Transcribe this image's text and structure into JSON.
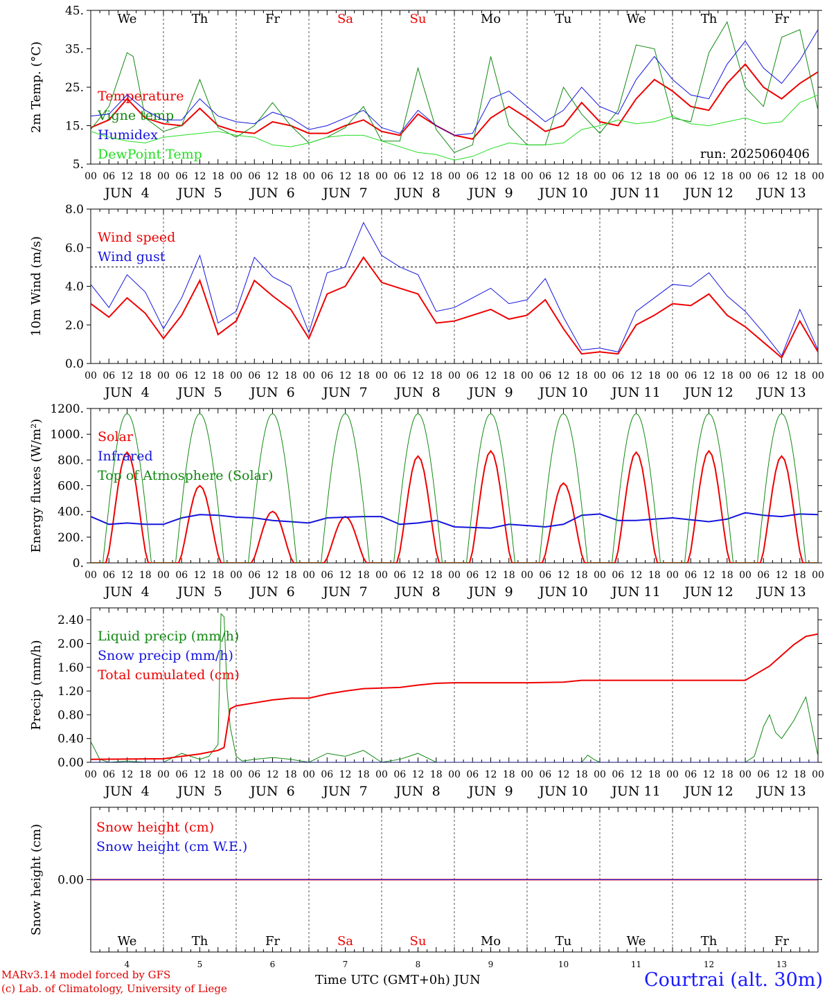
{
  "colors": {
    "red": "#ee0000",
    "green": "#118811",
    "blue": "#1414dd",
    "lightgreen": "#22dd22",
    "axis": "#000000"
  },
  "footer": {
    "model": "MARv3.14 model forced by GFS",
    "copyright": "(c) Lab. of Climatology, University of Liege",
    "station": "Courtrai (alt. 30m)",
    "x_title": "Time UTC (GMT+0h) JUN"
  },
  "days": {
    "weekday_labels": [
      "We",
      "Th",
      "Fr",
      "Sa",
      "Su",
      "Mo",
      "Tu",
      "We",
      "Th",
      "Fr"
    ],
    "weekend_flags": [
      false,
      false,
      false,
      true,
      true,
      false,
      false,
      false,
      false,
      false
    ],
    "date_labels": [
      "JUN  4",
      "JUN  5",
      "JUN  6",
      "JUN  7",
      "JUN  8",
      "JUN  9",
      "JUN 10",
      "JUN 11",
      "JUN 12",
      "JUN 13"
    ],
    "day_numbers": [
      "4",
      "5",
      "6",
      "7",
      "8",
      "9",
      "10",
      "11",
      "12",
      "13"
    ],
    "hour_labels": [
      "00",
      "06",
      "12",
      "18"
    ],
    "final_hour_label": "00"
  },
  "chart_data": [
    {
      "type": "line",
      "ylabel": "2m Temp. (°C)",
      "ylim": [
        5,
        45
      ],
      "yticks": [
        "5.",
        "15.",
        "25.",
        "35.",
        "45."
      ],
      "ytick_values": [
        5,
        15,
        25,
        35,
        45
      ],
      "annotation": "run: 2025060406",
      "x_hours_start": 0,
      "x_hours_end": 240,
      "series": [
        {
          "name": "Temperature",
          "color": "red",
          "width": 2,
          "x": [
            0,
            6,
            12,
            18,
            24,
            30,
            36,
            42,
            48,
            54,
            60,
            66,
            72,
            78,
            84,
            90,
            96,
            102,
            108,
            114,
            120,
            126,
            132,
            138,
            144,
            150,
            156,
            162,
            168,
            174,
            180,
            186,
            192,
            198,
            204,
            210,
            216,
            222,
            228,
            234,
            240
          ],
          "y": [
            14.5,
            16.5,
            22,
            17,
            15.5,
            15,
            19.5,
            15,
            13.5,
            13,
            16,
            15,
            13,
            13,
            15,
            16.5,
            13.5,
            12.5,
            18,
            15,
            12.5,
            11.5,
            17,
            20,
            17,
            13.5,
            15,
            21,
            16,
            15,
            22,
            27,
            24,
            20,
            19,
            26,
            31,
            25,
            22,
            26,
            29
          ]
        },
        {
          "name": "Vigne temp",
          "color": "green",
          "width": 1,
          "x": [
            0,
            6,
            12,
            14,
            18,
            24,
            30,
            36,
            42,
            48,
            54,
            60,
            66,
            72,
            78,
            84,
            90,
            96,
            102,
            108,
            114,
            120,
            126,
            132,
            138,
            144,
            150,
            156,
            162,
            168,
            174,
            180,
            186,
            192,
            198,
            204,
            210,
            216,
            222,
            228,
            234,
            240
          ],
          "y": [
            14,
            20,
            34,
            33,
            17,
            13.5,
            15,
            27,
            14.5,
            12,
            15,
            21,
            15,
            10.5,
            12,
            14.5,
            20,
            11,
            11,
            30,
            14,
            8,
            10,
            33,
            15,
            10,
            10,
            25,
            18,
            13,
            19,
            36,
            35,
            17,
            16,
            34,
            42,
            25,
            20,
            38,
            40,
            19
          ]
        },
        {
          "name": "Humidex",
          "color": "blue",
          "width": 1,
          "x": [
            0,
            6,
            12,
            18,
            24,
            30,
            36,
            42,
            48,
            54,
            60,
            66,
            72,
            78,
            84,
            90,
            96,
            102,
            108,
            114,
            120,
            126,
            132,
            138,
            144,
            150,
            156,
            162,
            168,
            174,
            180,
            186,
            192,
            198,
            204,
            210,
            216,
            222,
            228,
            234,
            240
          ],
          "y": [
            17.5,
            18,
            23,
            19,
            16.5,
            16.5,
            22,
            17.5,
            16,
            15.5,
            18.5,
            17,
            14,
            15,
            17,
            19,
            14.5,
            13,
            19,
            15,
            12.5,
            13,
            22,
            24,
            20,
            16,
            19,
            25,
            20,
            18,
            27,
            33,
            27,
            23,
            22,
            31,
            37,
            30,
            26,
            32,
            40
          ]
        },
        {
          "name": "DewPoint Temp",
          "color": "lightgreen",
          "width": 1,
          "x": [
            0,
            6,
            12,
            18,
            24,
            30,
            36,
            42,
            48,
            54,
            60,
            66,
            72,
            78,
            84,
            90,
            96,
            102,
            108,
            114,
            120,
            126,
            132,
            138,
            144,
            150,
            156,
            162,
            168,
            174,
            180,
            186,
            192,
            198,
            204,
            210,
            216,
            222,
            228,
            234,
            240
          ],
          "y": [
            13.5,
            12,
            11,
            10.5,
            12,
            12.5,
            13,
            13.5,
            12.5,
            12,
            10,
            9.5,
            10.5,
            12,
            12.5,
            12.5,
            11,
            9.5,
            8,
            7.5,
            6,
            7,
            9,
            10.5,
            10,
            10,
            10.5,
            14,
            15,
            16.5,
            15.5,
            16,
            17.5,
            15.5,
            15,
            16,
            17,
            15.5,
            16,
            21,
            23
          ]
        }
      ]
    },
    {
      "type": "line",
      "ylabel": "10m Wind (m/s)",
      "ylim": [
        0,
        8
      ],
      "yticks": [
        "0.0",
        "2.0",
        "4.0",
        "6.0",
        "8.0"
      ],
      "ytick_values": [
        0,
        2,
        4,
        6,
        8
      ],
      "reference_line": 5.0,
      "series": [
        {
          "name": "Wind speed",
          "color": "red",
          "width": 2,
          "x": [
            0,
            6,
            12,
            18,
            24,
            30,
            36,
            42,
            48,
            54,
            60,
            66,
            72,
            78,
            84,
            90,
            96,
            102,
            108,
            114,
            120,
            126,
            132,
            138,
            144,
            150,
            156,
            162,
            168,
            174,
            180,
            186,
            192,
            198,
            204,
            210,
            216,
            222,
            228,
            234,
            240
          ],
          "y": [
            3.1,
            2.4,
            3.4,
            2.6,
            1.3,
            2.5,
            4.3,
            1.5,
            2.2,
            4.3,
            3.5,
            2.8,
            1.3,
            3.6,
            4.0,
            5.5,
            4.2,
            3.9,
            3.6,
            2.1,
            2.2,
            2.5,
            2.8,
            2.3,
            2.5,
            3.3,
            1.8,
            0.5,
            0.6,
            0.5,
            2.0,
            2.5,
            3.1,
            3.0,
            3.6,
            2.5,
            1.9,
            1.1,
            0.3,
            2.2,
            0.6
          ]
        },
        {
          "name": "Wind gust",
          "color": "blue",
          "width": 1,
          "x": [
            0,
            6,
            12,
            18,
            24,
            30,
            36,
            42,
            48,
            54,
            60,
            66,
            72,
            78,
            84,
            90,
            96,
            102,
            108,
            114,
            120,
            126,
            132,
            138,
            144,
            150,
            156,
            162,
            168,
            174,
            180,
            186,
            192,
            198,
            204,
            210,
            216,
            222,
            228,
            234,
            240
          ],
          "y": [
            4.1,
            2.9,
            4.6,
            3.7,
            1.8,
            3.4,
            5.6,
            2.1,
            2.7,
            5.5,
            4.5,
            4.0,
            1.6,
            4.7,
            5.0,
            7.3,
            5.6,
            5.0,
            4.6,
            2.7,
            2.9,
            3.4,
            3.9,
            3.1,
            3.3,
            4.4,
            2.4,
            0.7,
            0.8,
            0.6,
            2.7,
            3.4,
            4.1,
            4.0,
            4.7,
            3.5,
            2.7,
            1.6,
            0.4,
            2.8,
            0.7
          ]
        }
      ]
    },
    {
      "type": "line",
      "ylabel": "Energy fluxes (W/m²)",
      "ylim": [
        0,
        1200
      ],
      "yticks": [
        "0.",
        "200.",
        "400.",
        "600.",
        "800.",
        "1000.",
        "1200."
      ],
      "ytick_values": [
        0,
        200,
        400,
        600,
        800,
        1000,
        1200
      ],
      "series": [
        {
          "name": "Solar",
          "color": "red",
          "width": 2,
          "solar_daily_peak": [
            860,
            600,
            400,
            360,
            830,
            870,
            620,
            860,
            870,
            830
          ]
        },
        {
          "name": "Infrared",
          "color": "blue",
          "width": 2,
          "x": [
            0,
            6,
            12,
            18,
            24,
            30,
            36,
            42,
            48,
            54,
            60,
            66,
            72,
            78,
            84,
            90,
            96,
            102,
            108,
            114,
            120,
            126,
            132,
            138,
            144,
            150,
            156,
            162,
            168,
            174,
            180,
            186,
            192,
            198,
            204,
            210,
            216,
            222,
            228,
            234,
            240
          ],
          "y": [
            360,
            300,
            310,
            300,
            300,
            350,
            375,
            370,
            355,
            350,
            330,
            320,
            310,
            350,
            355,
            360,
            360,
            300,
            310,
            330,
            280,
            275,
            270,
            300,
            290,
            280,
            300,
            370,
            380,
            330,
            330,
            340,
            350,
            335,
            320,
            340,
            390,
            370,
            360,
            380,
            375
          ]
        },
        {
          "name": "Top of Atmosphere (Solar)",
          "color": "green",
          "width": 1,
          "toa_daily_peak": 1160,
          "sunrise_hour": 4,
          "sunset_hour": 20
        }
      ]
    },
    {
      "type": "line",
      "ylabel": "Precip (mm/h)",
      "ylim": [
        0,
        2.6
      ],
      "yticks": [
        "0.00",
        "0.40",
        "0.80",
        "1.20",
        "1.60",
        "2.00",
        "2.40"
      ],
      "ytick_values": [
        0,
        0.4,
        0.8,
        1.2,
        1.6,
        2.0,
        2.4
      ],
      "series": [
        {
          "name": "Liquid precip (mm/h)",
          "color": "green",
          "width": 1,
          "x": [
            0,
            3,
            6,
            12,
            18,
            24,
            30,
            33,
            36,
            39,
            42,
            43,
            44,
            45,
            46,
            48,
            50,
            54,
            60,
            66,
            72,
            78,
            84,
            90,
            96,
            102,
            108,
            114,
            120,
            150,
            162,
            164,
            166,
            168,
            216,
            219,
            222,
            224,
            226,
            228,
            232,
            234,
            236,
            238,
            240
          ],
          "y": [
            0.35,
            0.05,
            0,
            0.02,
            0,
            0,
            0.15,
            0.1,
            0.05,
            0.1,
            0.3,
            2.5,
            2.45,
            1.2,
            0.6,
            0.1,
            0.02,
            0.05,
            0.08,
            0.05,
            0,
            0.15,
            0.1,
            0.2,
            0,
            0.05,
            0.15,
            0,
            0,
            0,
            0,
            0.12,
            0.05,
            0,
            0,
            0.1,
            0.6,
            0.8,
            0.5,
            0.4,
            0.7,
            0.9,
            1.1,
            0.6,
            0.1
          ]
        },
        {
          "name": "Snow precip (mm/h)",
          "color": "blue",
          "width": 1,
          "x": [
            0,
            240
          ],
          "y": [
            0,
            0
          ]
        },
        {
          "name": "Total cumulated (cm)",
          "color": "red",
          "width": 2,
          "x": [
            0,
            24,
            30,
            36,
            42,
            44,
            46,
            48,
            54,
            60,
            66,
            72,
            78,
            84,
            90,
            96,
            102,
            108,
            114,
            120,
            132,
            144,
            156,
            162,
            168,
            180,
            192,
            204,
            216,
            220,
            224,
            228,
            232,
            236,
            240
          ],
          "y": [
            0.05,
            0.06,
            0.1,
            0.14,
            0.2,
            0.25,
            0.9,
            0.95,
            1.0,
            1.05,
            1.08,
            1.08,
            1.15,
            1.2,
            1.24,
            1.25,
            1.26,
            1.3,
            1.33,
            1.34,
            1.34,
            1.34,
            1.35,
            1.38,
            1.38,
            1.38,
            1.38,
            1.38,
            1.38,
            1.5,
            1.62,
            1.8,
            1.98,
            2.12,
            2.16
          ]
        }
      ]
    },
    {
      "type": "line",
      "ylabel": "Snow height (cm)",
      "ylim": [
        -1,
        1
      ],
      "yticks": [
        "0.00"
      ],
      "ytick_values": [
        0
      ],
      "series": [
        {
          "name": "Snow height (cm)",
          "color": "red",
          "width": 2,
          "x": [
            0,
            240
          ],
          "y": [
            0,
            0
          ]
        },
        {
          "name": "Snow height (cm W.E.)",
          "color": "blue",
          "width": 1,
          "x": [
            0,
            240
          ],
          "y": [
            0,
            0
          ]
        }
      ]
    }
  ]
}
